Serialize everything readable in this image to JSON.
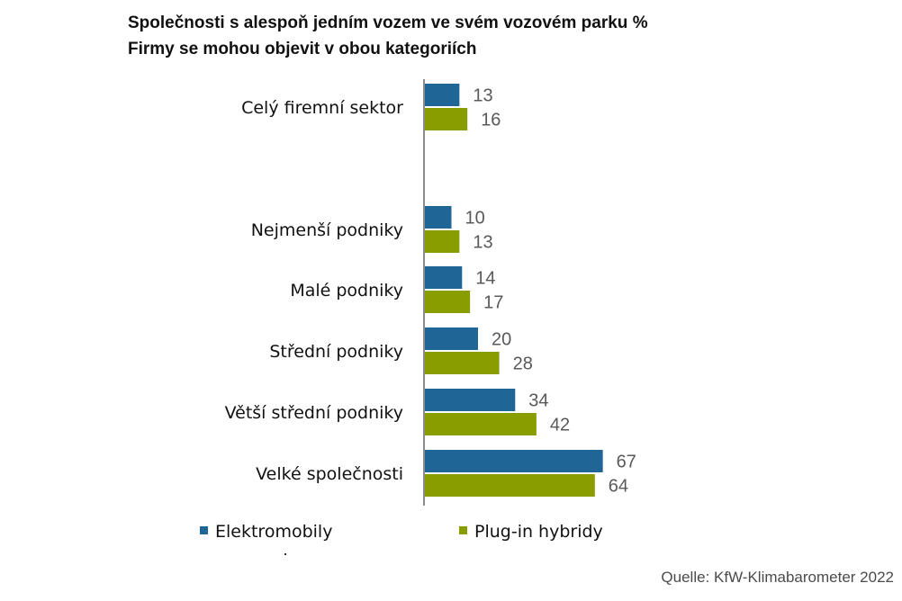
{
  "chart_data": {
    "type": "bar",
    "orientation": "horizontal",
    "title": "Společnosti s alespoň jedním vozem ve svém vozovém parku %",
    "subtitle": "Firmy se mohou objevit v obou kategoriích",
    "categories": [
      "Celý firemní sektor",
      "Nejmenší podniky",
      "Malé podniky",
      "Střední podniky",
      "Větší střední podniky",
      "Velké společnosti"
    ],
    "series": [
      {
        "name": "Elektromobily",
        "color": "#1f6596",
        "values": [
          13,
          10,
          14,
          20,
          34,
          67
        ]
      },
      {
        "name": "Plug-in hybridy",
        "color": "#8a9d00",
        "values": [
          16,
          13,
          17,
          28,
          42,
          64
        ]
      }
    ],
    "xlim": [
      0,
      100
    ],
    "grid": false,
    "legend": "bottom",
    "data_labels": true
  },
  "source": "Quelle: KfW-Klimabarometer 2022"
}
